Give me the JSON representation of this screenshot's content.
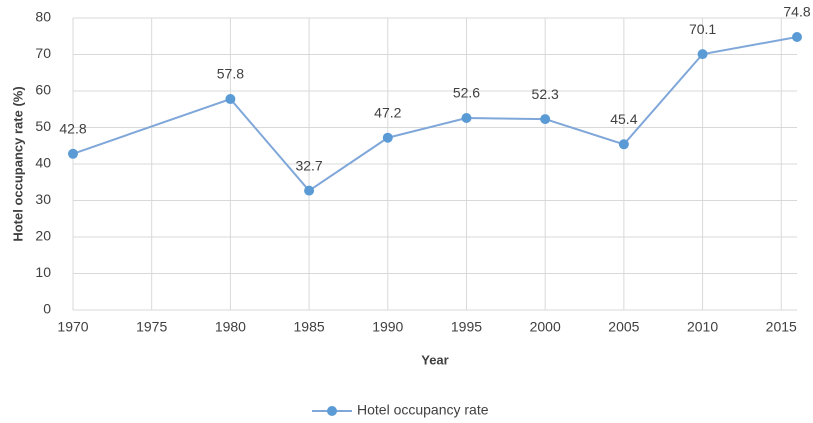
{
  "chart_data": {
    "type": "line",
    "x_label": "Year",
    "y_label": "Hotel occupancy rate (%)",
    "x": [
      1970,
      1980,
      1985,
      1990,
      1995,
      2000,
      2005,
      2010,
      2016
    ],
    "series": [
      {
        "name": "Hotel occupancy rate",
        "color": "#5b9bd5",
        "values": [
          42.8,
          57.8,
          32.7,
          47.2,
          52.6,
          52.3,
          45.4,
          70.1,
          74.8
        ]
      }
    ],
    "xlim": [
      1970,
      2016
    ],
    "xticks": [
      1970,
      1975,
      1980,
      1985,
      1990,
      1995,
      2000,
      2005,
      2010,
      2015
    ],
    "ylim": [
      0,
      80
    ],
    "yticks": [
      0,
      10,
      20,
      30,
      40,
      50,
      60,
      70,
      80
    ],
    "grid": true,
    "data_labels": true,
    "legend": "bottom"
  }
}
